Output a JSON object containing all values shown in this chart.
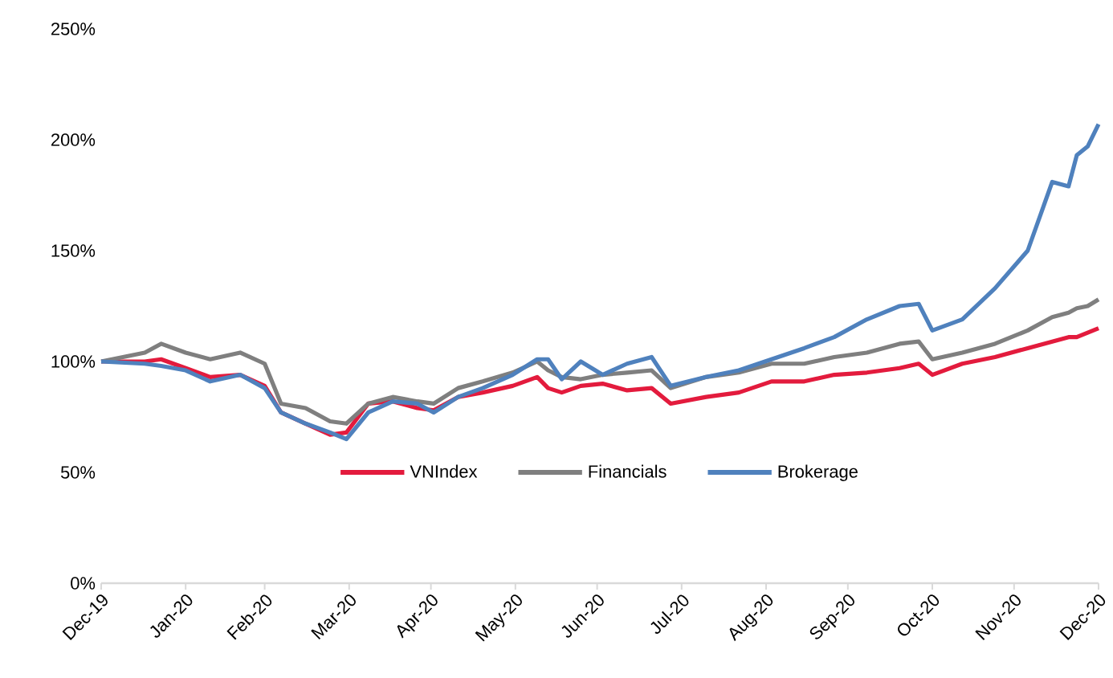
{
  "chart_data": {
    "type": "line",
    "x": [
      "2019-12-31",
      "2020-01-16",
      "2020-01-22",
      "2020-01-31",
      "2020-02-09",
      "2020-02-20",
      "2020-02-29",
      "2020-03-06",
      "2020-03-15",
      "2020-03-24",
      "2020-03-30",
      "2020-04-07",
      "2020-04-16",
      "2020-04-25",
      "2020-05-01",
      "2020-05-10",
      "2020-05-19",
      "2020-05-30",
      "2020-06-08",
      "2020-06-12",
      "2020-06-17",
      "2020-06-24",
      "2020-07-02",
      "2020-07-11",
      "2020-07-20",
      "2020-07-27",
      "2020-08-09",
      "2020-08-21",
      "2020-09-02",
      "2020-09-14",
      "2020-09-25",
      "2020-10-07",
      "2020-10-19",
      "2020-10-26",
      "2020-10-31",
      "2020-11-11",
      "2020-11-23",
      "2020-12-05",
      "2020-12-14",
      "2020-12-20",
      "2020-12-23",
      "2020-12-27",
      "2020-12-31"
    ],
    "series": [
      {
        "name": "VNIndex",
        "color": "#e31b3d",
        "values": [
          100,
          100,
          101,
          97,
          93,
          94,
          89,
          77,
          72,
          67,
          68,
          81,
          82,
          79,
          78,
          84,
          86,
          89,
          93,
          88,
          86,
          89,
          90,
          87,
          88,
          81,
          84,
          86,
          91,
          91,
          94,
          95,
          97,
          99,
          94,
          99,
          102,
          106,
          109,
          111,
          111,
          113,
          115
        ]
      },
      {
        "name": "Financials",
        "color": "#7f7f7f",
        "values": [
          100,
          104,
          108,
          104,
          101,
          104,
          99,
          81,
          79,
          73,
          72,
          81,
          84,
          82,
          81,
          88,
          91,
          95,
          100,
          96,
          93,
          92,
          94,
          95,
          96,
          88,
          93,
          95,
          99,
          99,
          102,
          104,
          108,
          109,
          101,
          104,
          108,
          114,
          120,
          122,
          124,
          125,
          128
        ]
      },
      {
        "name": "Brokerage",
        "color": "#4f81bd",
        "values": [
          100,
          99,
          98,
          96,
          91,
          94,
          88,
          77,
          72,
          68,
          65,
          77,
          82,
          81,
          77,
          84,
          88,
          94,
          101,
          101,
          92,
          100,
          94,
          99,
          102,
          89,
          93,
          96,
          101,
          106,
          111,
          119,
          125,
          126,
          114,
          119,
          133,
          150,
          181,
          179,
          193,
          197,
          207
        ]
      }
    ],
    "xlim": [
      "2019-12-31",
      "2020-12-31"
    ],
    "xticks": [
      {
        "value": "2019-12-31",
        "label": "Dec-19"
      },
      {
        "value": "2020-01-31",
        "label": "Jan-20"
      },
      {
        "value": "2020-02-29",
        "label": "Feb-20"
      },
      {
        "value": "2020-03-31",
        "label": "Mar-20"
      },
      {
        "value": "2020-04-30",
        "label": "Apr-20"
      },
      {
        "value": "2020-05-31",
        "label": "May-20"
      },
      {
        "value": "2020-06-30",
        "label": "Jun-20"
      },
      {
        "value": "2020-07-31",
        "label": "Jul-20"
      },
      {
        "value": "2020-08-31",
        "label": "Aug-20"
      },
      {
        "value": "2020-09-30",
        "label": "Sep-20"
      },
      {
        "value": "2020-10-31",
        "label": "Oct-20"
      },
      {
        "value": "2020-11-30",
        "label": "Nov-20"
      },
      {
        "value": "2020-12-31",
        "label": "Dec-20"
      }
    ],
    "ylim": [
      0,
      250
    ],
    "yticks": [
      {
        "value": 0,
        "label": "0%"
      },
      {
        "value": 50,
        "label": "50%"
      },
      {
        "value": 100,
        "label": "100%"
      },
      {
        "value": 150,
        "label": "150%"
      },
      {
        "value": 200,
        "label": "200%"
      },
      {
        "value": 250,
        "label": "250%"
      }
    ],
    "legend": "bottom",
    "line_style": "solid",
    "marker": "none"
  }
}
